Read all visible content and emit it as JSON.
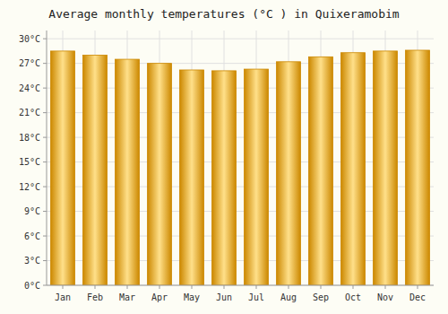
{
  "chart_data": {
    "type": "bar",
    "title": "Average monthly temperatures (°C ) in Quixeramobim",
    "categories": [
      "Jan",
      "Feb",
      "Mar",
      "Apr",
      "May",
      "Jun",
      "Jul",
      "Aug",
      "Sep",
      "Oct",
      "Nov",
      "Dec"
    ],
    "values": [
      28.5,
      28.0,
      27.5,
      27.0,
      26.2,
      26.1,
      26.3,
      27.2,
      27.8,
      28.3,
      28.5,
      28.6
    ],
    "color": "#CC8800",
    "ylim": [
      0,
      31
    ],
    "yticks": [
      {
        "value": 0,
        "label": "0°C"
      },
      {
        "value": 3,
        "label": "3°C"
      },
      {
        "value": 6,
        "label": "6°C"
      },
      {
        "value": 9,
        "label": "9°C"
      },
      {
        "value": 12,
        "label": "12°C"
      },
      {
        "value": 15,
        "label": "15°C"
      },
      {
        "value": 18,
        "label": "18°C"
      },
      {
        "value": 21,
        "label": "21°C"
      },
      {
        "value": 24,
        "label": "24°C"
      },
      {
        "value": 27,
        "label": "27°C"
      },
      {
        "value": 30,
        "label": "30°C"
      }
    ],
    "grid": true
  }
}
